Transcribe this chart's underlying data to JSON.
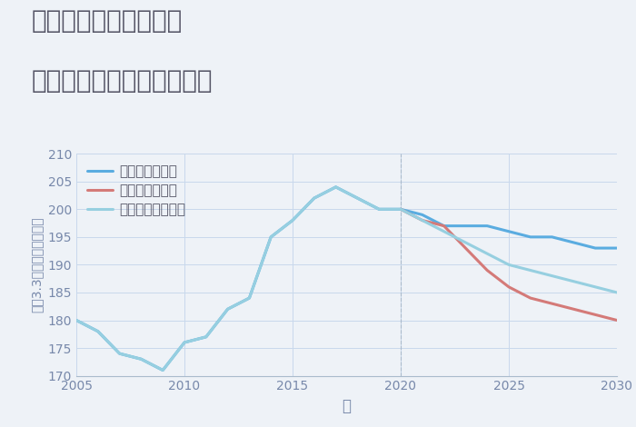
{
  "title_line1": "兵庫県西宮市前浜町の",
  "title_line2": "中古マンションの価格推移",
  "xlabel": "年",
  "ylabel": "坪（3.3㎡）単価（万円）",
  "ylim": [
    170,
    210
  ],
  "xlim": [
    2005,
    2030
  ],
  "yticks": [
    170,
    175,
    180,
    185,
    190,
    195,
    200,
    205,
    210
  ],
  "xticks": [
    2005,
    2010,
    2015,
    2020,
    2025,
    2030
  ],
  "background_color": "#eef2f7",
  "plot_bg_color": "#eef2f7",
  "good_scenario": {
    "x": [
      2005,
      2006,
      2007,
      2008,
      2009,
      2010,
      2011,
      2012,
      2013,
      2014,
      2015,
      2016,
      2017,
      2018,
      2019,
      2020,
      2021,
      2022,
      2023,
      2024,
      2025,
      2026,
      2027,
      2028,
      2029,
      2030
    ],
    "y": [
      180,
      178,
      174,
      173,
      171,
      176,
      177,
      182,
      184,
      195,
      198,
      202,
      204,
      202,
      200,
      200,
      199,
      197,
      197,
      197,
      196,
      195,
      195,
      194,
      193,
      193
    ],
    "color": "#5aace0",
    "label": "グッドシナリオ",
    "linewidth": 2.2
  },
  "bad_scenario": {
    "x": [
      2020,
      2021,
      2022,
      2023,
      2024,
      2025,
      2026,
      2027,
      2028,
      2029,
      2030
    ],
    "y": [
      200,
      198,
      197,
      193,
      189,
      186,
      184,
      183,
      182,
      181,
      180
    ],
    "color": "#d47a78",
    "label": "バッドシナリオ",
    "linewidth": 2.2
  },
  "normal_scenario": {
    "x": [
      2005,
      2006,
      2007,
      2008,
      2009,
      2010,
      2011,
      2012,
      2013,
      2014,
      2015,
      2016,
      2017,
      2018,
      2019,
      2020,
      2021,
      2022,
      2023,
      2024,
      2025,
      2026,
      2027,
      2028,
      2029,
      2030
    ],
    "y": [
      180,
      178,
      174,
      173,
      171,
      176,
      177,
      182,
      184,
      195,
      198,
      202,
      204,
      202,
      200,
      200,
      198,
      196,
      194,
      192,
      190,
      189,
      188,
      187,
      186,
      185
    ],
    "color": "#96cfe0",
    "label": "ノーマルシナリオ",
    "linewidth": 2.2
  },
  "title_color": "#555566",
  "title_fontsize": 20,
  "axis_label_color": "#7788aa",
  "tick_color": "#7788aa",
  "grid_color": "#c8d8ec",
  "legend_fontsize": 11
}
